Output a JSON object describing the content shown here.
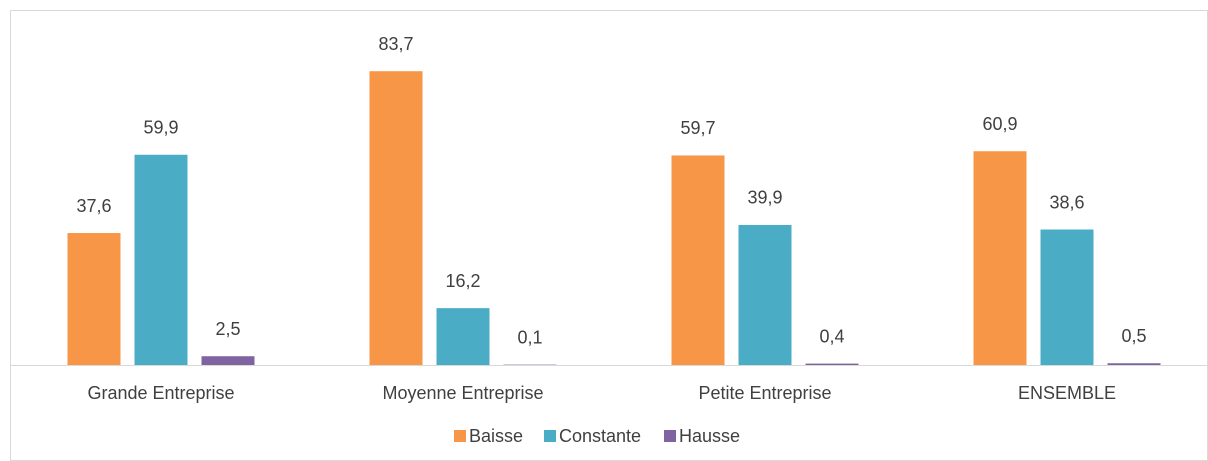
{
  "chart_data": {
    "type": "bar",
    "categories": [
      "Grande Entreprise",
      "Moyenne Entreprise",
      "Petite Entreprise",
      "ENSEMBLE"
    ],
    "series": [
      {
        "name": "Baisse",
        "color": "#f79646",
        "values": [
          37.6,
          83.7,
          59.7,
          60.9
        ],
        "value_labels": [
          "37,6",
          "83,7",
          "59,7",
          "60,9"
        ]
      },
      {
        "name": "Constante",
        "color": "#4bacc6",
        "values": [
          59.9,
          16.2,
          39.9,
          38.6
        ],
        "value_labels": [
          "59,9",
          "16,2",
          "39,9",
          "38,6"
        ]
      },
      {
        "name": "Hausse",
        "color": "#8064a2",
        "values": [
          2.5,
          0.1,
          0.4,
          0.5
        ],
        "value_labels": [
          "2,5",
          "0,1",
          "0,4",
          "0,5"
        ]
      }
    ]
  }
}
